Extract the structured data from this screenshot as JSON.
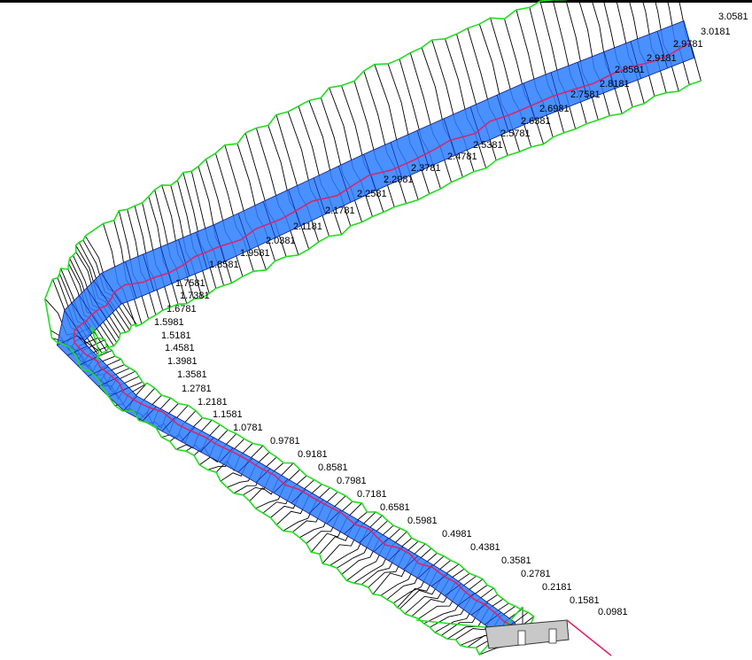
{
  "view": {
    "colors": {
      "bank_outline": "#22dd22",
      "section_lines": "#000000",
      "water_fill": "#2a7cff",
      "water_hatch": "#0a1a8a",
      "channel_lines": "#e0206a",
      "structure": "#c8c8c8",
      "background": "#ffffff"
    },
    "stations": [
      "3.0581",
      "3.0181",
      "2.9781",
      "2.9181",
      "2.8581",
      "2.8181",
      "2.7581",
      "2.6981",
      "2.6381",
      "2.5781",
      "2.5381",
      "2.4781",
      "2.3781",
      "2.2981",
      "2.2581",
      "2.1781",
      "2.1181",
      "2.0381",
      "1.9581",
      "1.8581",
      "1.7581",
      "1.7381",
      "1.6781",
      "1.5981",
      "1.5181",
      "1.4581",
      "1.3981",
      "1.3581",
      "1.2781",
      "1.2181",
      "1.1581",
      "1.0781",
      "0.9781",
      "0.9181",
      "0.8581",
      "0.7981",
      "0.7181",
      "0.6581",
      "0.5981",
      "0.4981",
      "0.4381",
      "0.3581",
      "0.2781",
      "0.2181",
      "0.1581",
      "0.0981"
    ]
  }
}
